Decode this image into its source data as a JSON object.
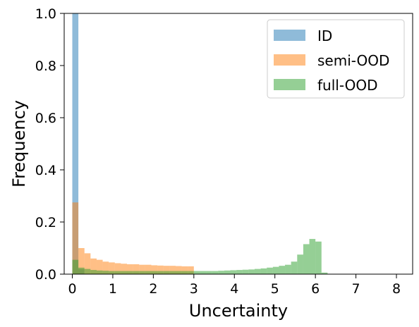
{
  "chart_data": {
    "type": "bar",
    "title": "",
    "xlabel": "Uncertainty",
    "ylabel": "Frequency",
    "xlim": [
      -0.2,
      8.4
    ],
    "ylim": [
      0,
      1.0
    ],
    "bin_width": 0.15,
    "xticks": [
      0,
      1,
      2,
      3,
      4,
      5,
      6,
      7,
      8
    ],
    "yticks": [
      0.0,
      0.2,
      0.4,
      0.6,
      0.8,
      1.0
    ],
    "legend_position": "top-right",
    "series": [
      {
        "name": "ID",
        "color": "#1f77b4",
        "opacity": 0.5,
        "bin_starts": [
          0.0,
          0.15
        ],
        "values": [
          1.0,
          0.02
        ]
      },
      {
        "name": "semi-OOD",
        "color": "#ff7f0e",
        "opacity": 0.5,
        "bin_starts": [
          0.0,
          0.15,
          0.3,
          0.45,
          0.6,
          0.75,
          0.9,
          1.05,
          1.2,
          1.35,
          1.5,
          1.65,
          1.8,
          1.95,
          2.1,
          2.25,
          2.4,
          2.55,
          2.7,
          2.85
        ],
        "values": [
          0.275,
          0.1,
          0.08,
          0.06,
          0.055,
          0.048,
          0.045,
          0.042,
          0.04,
          0.038,
          0.038,
          0.036,
          0.036,
          0.034,
          0.033,
          0.032,
          0.032,
          0.031,
          0.03,
          0.03
        ]
      },
      {
        "name": "full-OOD",
        "color": "#2ca02c",
        "opacity": 0.5,
        "bin_starts": [
          0.0,
          0.15,
          0.3,
          0.45,
          0.6,
          0.75,
          0.9,
          1.05,
          1.2,
          1.35,
          1.5,
          1.65,
          1.8,
          1.95,
          2.1,
          2.25,
          2.4,
          2.55,
          2.7,
          2.85,
          3.0,
          3.15,
          3.3,
          3.45,
          3.6,
          3.75,
          3.9,
          4.05,
          4.2,
          4.35,
          4.5,
          4.65,
          4.8,
          4.95,
          5.1,
          5.25,
          5.4,
          5.55,
          5.7,
          5.85,
          6.0,
          6.15
        ],
        "values": [
          0.055,
          0.025,
          0.02,
          0.016,
          0.014,
          0.013,
          0.012,
          0.012,
          0.012,
          0.012,
          0.012,
          0.012,
          0.012,
          0.012,
          0.012,
          0.012,
          0.012,
          0.012,
          0.012,
          0.012,
          0.012,
          0.012,
          0.012,
          0.012,
          0.013,
          0.014,
          0.015,
          0.016,
          0.017,
          0.018,
          0.02,
          0.022,
          0.025,
          0.028,
          0.032,
          0.036,
          0.048,
          0.075,
          0.115,
          0.135,
          0.125,
          0.006
        ]
      }
    ]
  }
}
